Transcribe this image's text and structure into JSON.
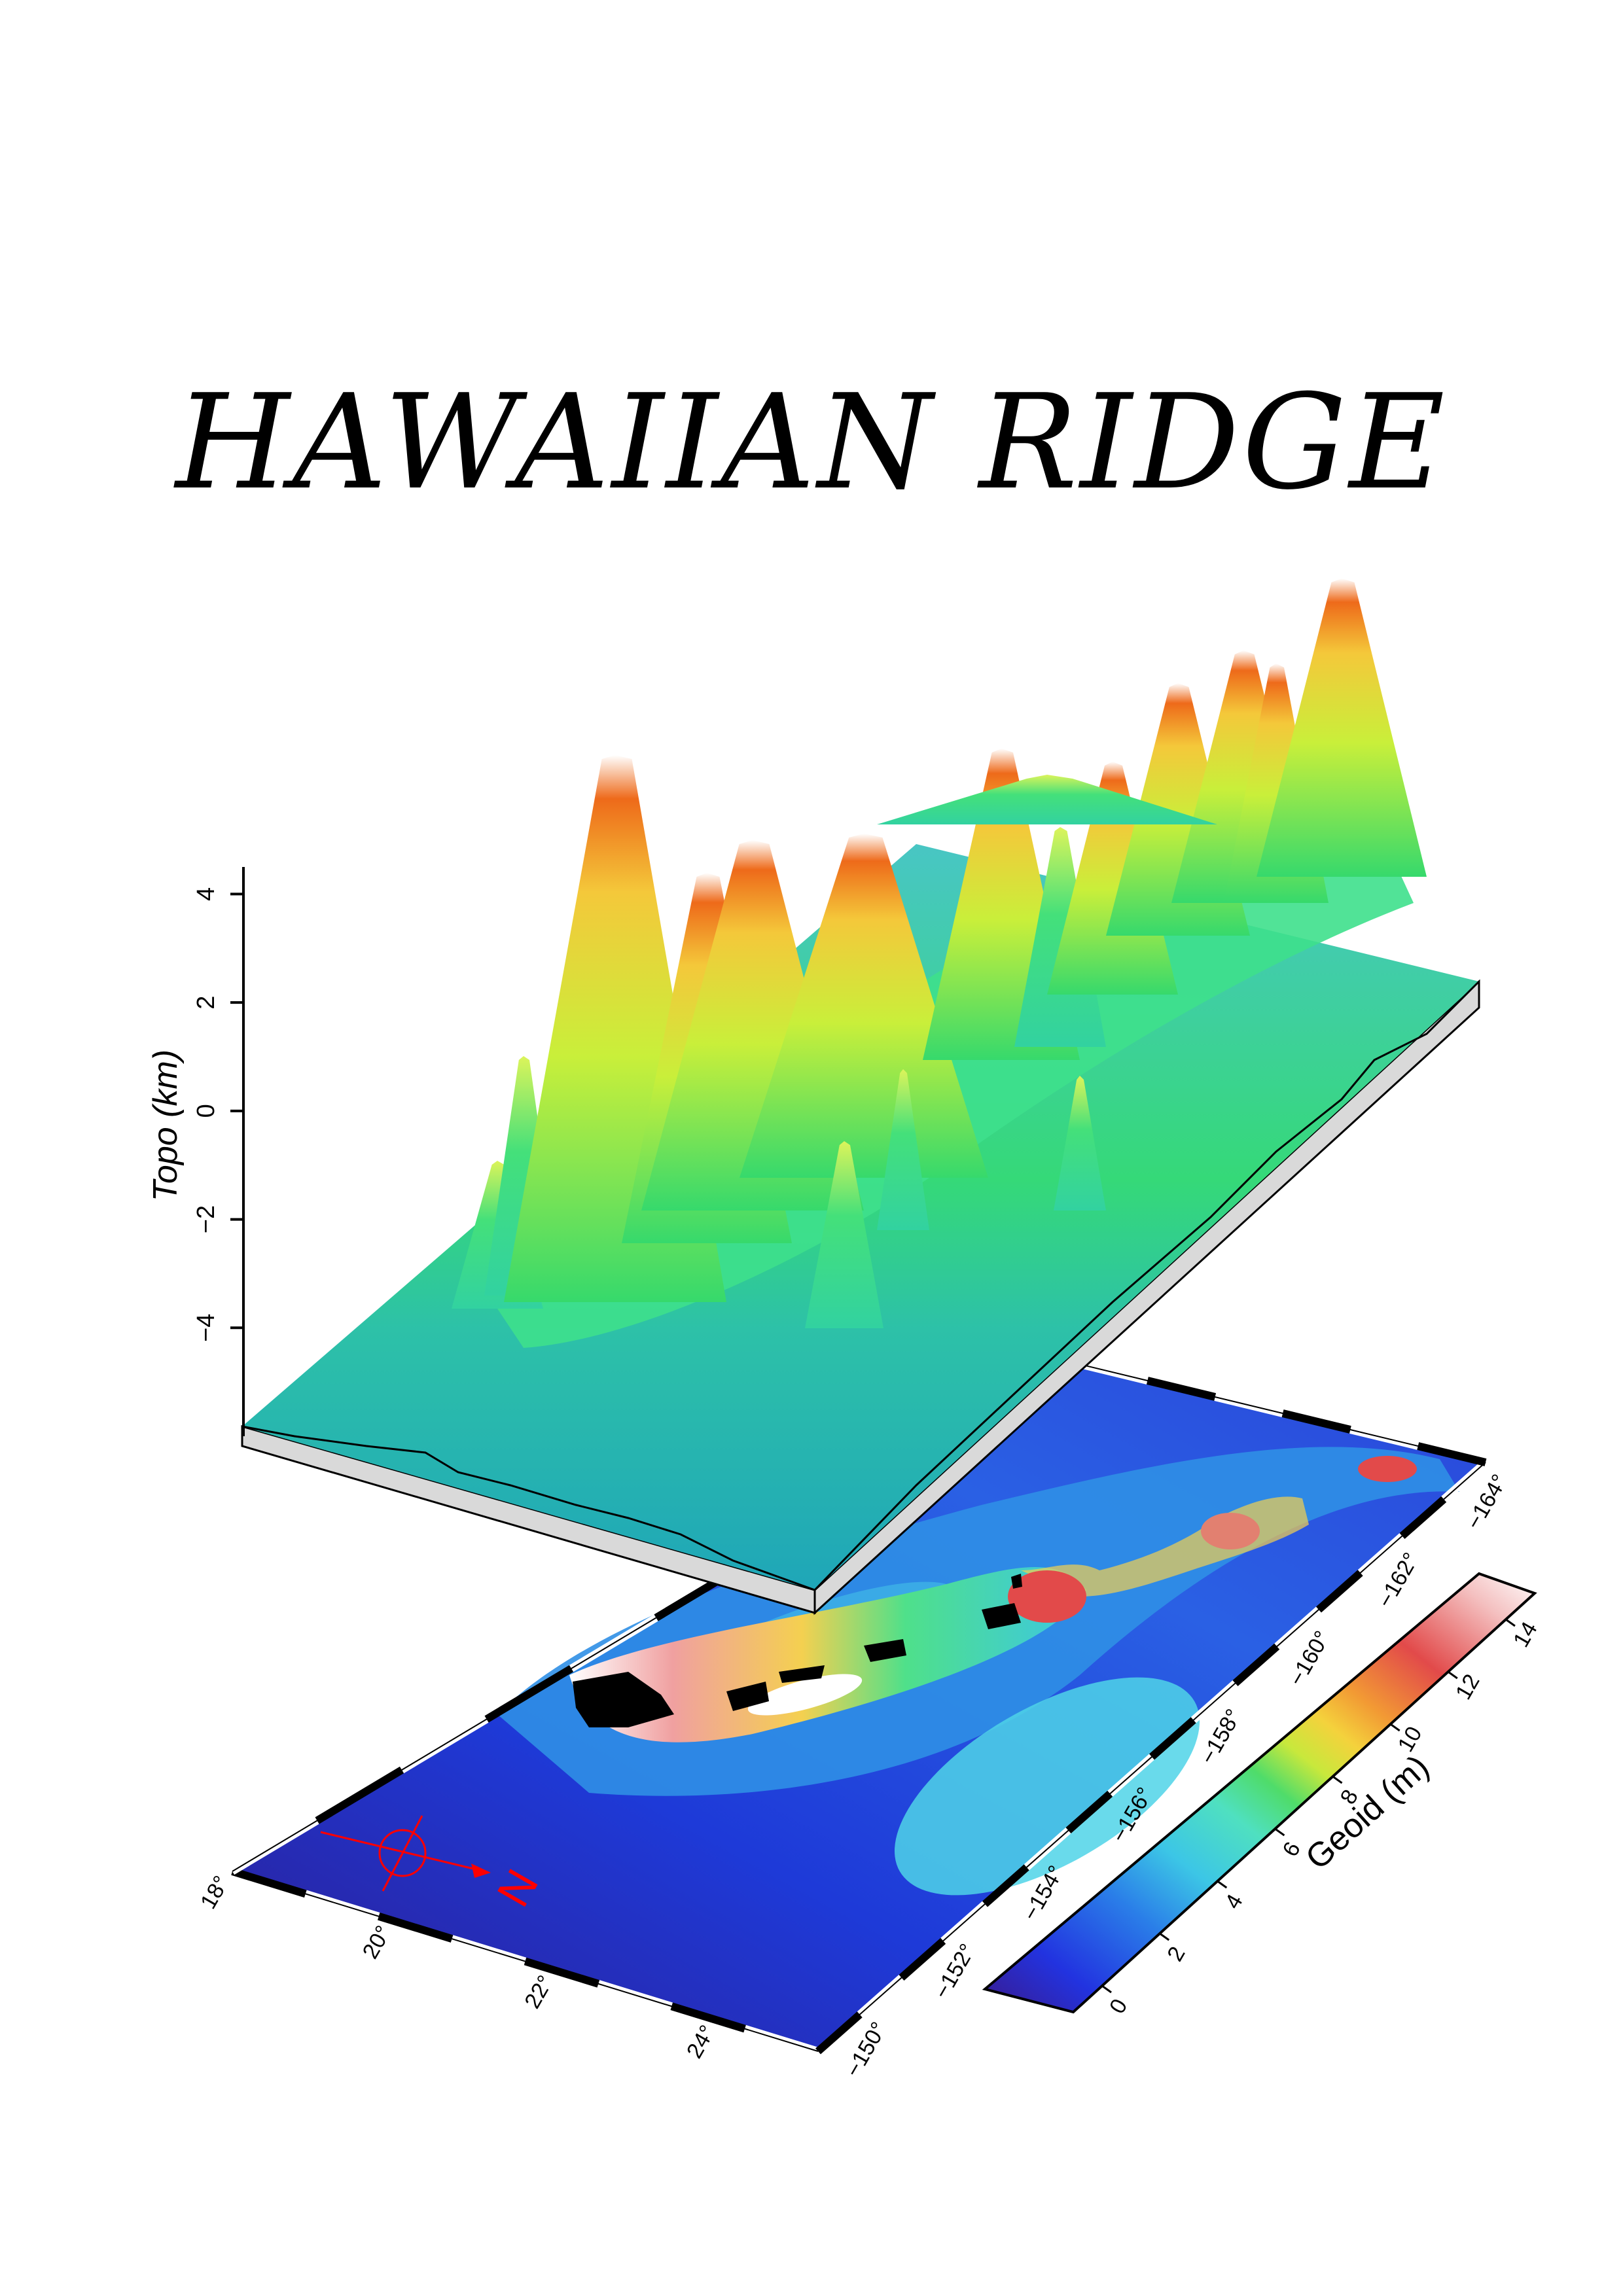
{
  "title": "HAWAIIAN RIDGE",
  "topo_axis": {
    "label": "Topo (km)",
    "ticks": [
      "4",
      "2",
      "0",
      "−2",
      "−4"
    ],
    "values": [
      4,
      2,
      0,
      -2,
      -4
    ],
    "range": [
      -6,
      4.5
    ]
  },
  "longitude_ticks": [
    "−150°",
    "−152°",
    "−154°",
    "−156°",
    "−158°",
    "−160°",
    "−162°",
    "−164°"
  ],
  "latitude_ticks": [
    "18°",
    "20°",
    "22°",
    "24°"
  ],
  "geoid_scale": {
    "label": "Geoid (m)",
    "ticks": [
      "0",
      "2",
      "4",
      "6",
      "8",
      "10",
      "12",
      "14"
    ],
    "values": [
      0,
      2,
      4,
      6,
      8,
      10,
      12,
      14
    ],
    "range": [
      -1,
      15
    ]
  },
  "north_arrow": {
    "label": "N",
    "color": "#ff0000"
  },
  "colors": {
    "deep_ocean": "#2a1f9a",
    "ocean": "#1e3fd6",
    "shelf": "#3aa9d8",
    "ridge_low": "#2fd48a",
    "ridge_mid": "#e6ee3a",
    "ridge_high": "#f08a1c",
    "peak": "#ffffff",
    "land": "#000000",
    "box_side": "#d9d9d9"
  }
}
